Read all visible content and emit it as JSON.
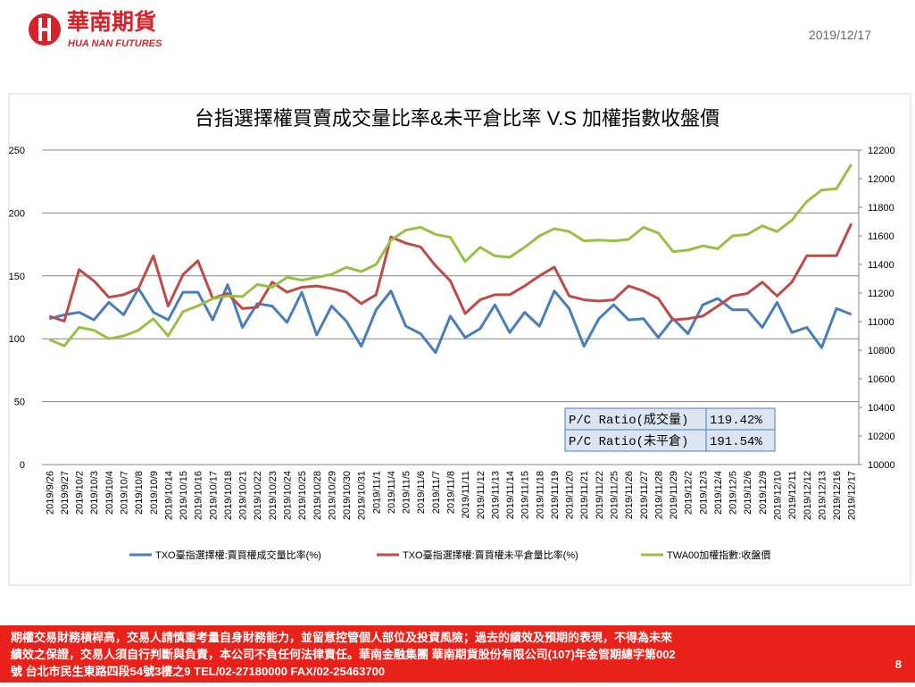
{
  "header": {
    "logo_cn": "華南期貨",
    "logo_en": "HUA NAN FUTURES",
    "date": "2019/12/17"
  },
  "chart_data": {
    "type": "line",
    "title": "台指選擇權買賣成交量比率&未平倉比率 V.S 加權指數收盤價",
    "categories": [
      "2019/9/26",
      "2019/9/27",
      "2019/10/2",
      "2019/10/3",
      "2019/10/4",
      "2019/10/7",
      "2019/10/8",
      "2019/10/9",
      "2019/10/14",
      "2019/10/15",
      "2019/10/16",
      "2019/10/17",
      "2019/10/18",
      "2019/10/21",
      "2019/10/22",
      "2019/10/23",
      "2019/10/24",
      "2019/10/25",
      "2019/10/28",
      "2019/10/29",
      "2019/10/30",
      "2019/10/31",
      "2019/11/1",
      "2019/11/4",
      "2019/11/5",
      "2019/11/6",
      "2019/11/7",
      "2019/11/8",
      "2019/11/11",
      "2019/11/12",
      "2019/11/13",
      "2019/11/14",
      "2019/11/15",
      "2019/11/18",
      "2019/11/19",
      "2019/11/20",
      "2019/11/21",
      "2019/11/22",
      "2019/11/25",
      "2019/11/26",
      "2019/11/27",
      "2019/11/28",
      "2019/11/29",
      "2019/12/2",
      "2019/12/3",
      "2019/12/4",
      "2019/12/5",
      "2019/12/6",
      "2019/12/9",
      "2019/12/10",
      "2019/12/11",
      "2019/12/12",
      "2019/12/13",
      "2019/12/16",
      "2019/12/17"
    ],
    "series": [
      {
        "name": "TXO臺指選擇權:賣買權成交量比率(%)",
        "color": "#4a7ebb",
        "values": [
          116,
          119,
          121,
          115,
          129,
          119,
          140,
          121,
          115,
          137,
          137,
          115,
          143,
          109,
          128,
          126,
          113,
          137,
          103,
          126,
          114,
          94,
          123,
          138,
          110,
          104,
          89,
          118,
          101,
          108,
          127,
          105,
          121,
          110,
          138,
          124,
          94,
          116,
          127,
          115,
          116,
          101,
          116,
          104,
          127,
          132,
          123,
          123,
          109,
          129,
          105,
          109,
          93,
          124,
          119.42
        ]
      },
      {
        "name": "TXO臺指選擇權:賣買權未平倉量比率(%)",
        "color": "#be4b48",
        "values": [
          118,
          114,
          155,
          146,
          133,
          135,
          140,
          166,
          126,
          151,
          162,
          132,
          136,
          124,
          125,
          145,
          137,
          141,
          142,
          140,
          137,
          128,
          135,
          181,
          176,
          173,
          158,
          146,
          120,
          131,
          135,
          135,
          142,
          150,
          157,
          134,
          131,
          130,
          131,
          142,
          138,
          132,
          115,
          116,
          118,
          126,
          134,
          136,
          145,
          134,
          145,
          166,
          166,
          166,
          191.54
        ]
      },
      {
        "name": "TWA00加權指數:收盤價",
        "color": "#98c046",
        "axis": "y2",
        "values": [
          10875,
          10830,
          10960,
          10940,
          10880,
          10900,
          10940,
          11020,
          10900,
          11070,
          11110,
          11160,
          11180,
          11175,
          11260,
          11240,
          11310,
          11290,
          11310,
          11330,
          11380,
          11350,
          11400,
          11570,
          11640,
          11660,
          11610,
          11590,
          11420,
          11520,
          11460,
          11450,
          11520,
          11600,
          11650,
          11630,
          11565,
          11570,
          11565,
          11575,
          11660,
          11620,
          11490,
          11500,
          11530,
          11510,
          11600,
          11610,
          11670,
          11630,
          11710,
          11840,
          11920,
          11930,
          12100
        ]
      }
    ],
    "ylim": [
      0,
      250
    ],
    "yticks": [
      0,
      50,
      100,
      150,
      200,
      250
    ],
    "y2lim": [
      10000,
      12200
    ],
    "y2ticks": [
      10000,
      10200,
      10400,
      10600,
      10800,
      11000,
      11200,
      11400,
      11600,
      11800,
      12000,
      12200
    ],
    "grid": true,
    "legend": "bottom"
  },
  "table": {
    "rows": [
      [
        "P/C Ratio(成交量)",
        "119.42%"
      ],
      [
        "P/C Ratio(未平倉)",
        "191.54%"
      ]
    ]
  },
  "footer": {
    "lines": [
      "期權交易財務槓桿高，交易人請慎重考量自身財務能力，並留意控管個人部位及投資風險；過去的績效及預期的表現，不得為未來",
      "績效之保證，交易人須自行判斷與負責，本公司不負任何法律責任。華南金融集團 華南期貨股份有限公司(107)年金管期總字第002",
      "號  台北市民生東路四段54號3樓之9  TEL/02-27180000  FAX/02-25463700"
    ],
    "page": "8"
  }
}
